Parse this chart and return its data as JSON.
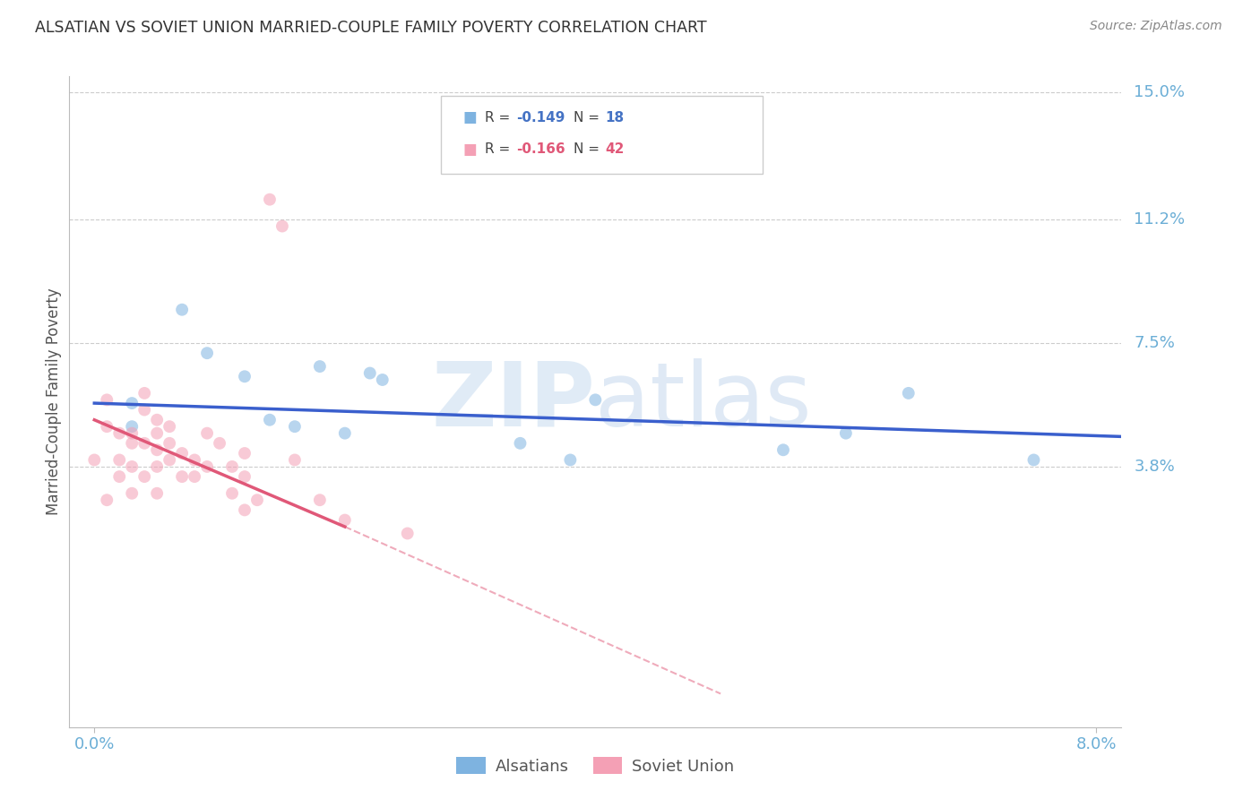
{
  "title": "ALSATIAN VS SOVIET UNION MARRIED-COUPLE FAMILY POVERTY CORRELATION CHART",
  "source": "Source: ZipAtlas.com",
  "ylabel": "Married-Couple Family Poverty",
  "xlim": [
    -0.002,
    0.082
  ],
  "ylim": [
    -0.04,
    0.155
  ],
  "ytick_vals": [
    0.038,
    0.075,
    0.112,
    0.15
  ],
  "ytick_labels": [
    "3.8%",
    "7.5%",
    "11.2%",
    "15.0%"
  ],
  "alsatian_color": "#7EB3E0",
  "soviet_color": "#F4A0B5",
  "trend_alsatian_color": "#3A5FCD",
  "trend_soviet_color": "#E05878",
  "watermark_zip": "ZIP",
  "watermark_atlas": "atlas",
  "alsatian_x": [
    0.003,
    0.003,
    0.007,
    0.009,
    0.012,
    0.014,
    0.016,
    0.018,
    0.02,
    0.022,
    0.023,
    0.034,
    0.038,
    0.04,
    0.055,
    0.06,
    0.065,
    0.075
  ],
  "alsatian_y": [
    0.057,
    0.05,
    0.085,
    0.072,
    0.065,
    0.052,
    0.05,
    0.068,
    0.048,
    0.066,
    0.064,
    0.045,
    0.04,
    0.058,
    0.043,
    0.048,
    0.06,
    0.04
  ],
  "soviet_x": [
    0.0,
    0.001,
    0.001,
    0.001,
    0.002,
    0.002,
    0.002,
    0.003,
    0.003,
    0.003,
    0.003,
    0.004,
    0.004,
    0.004,
    0.004,
    0.005,
    0.005,
    0.005,
    0.005,
    0.005,
    0.006,
    0.006,
    0.006,
    0.007,
    0.007,
    0.008,
    0.008,
    0.009,
    0.009,
    0.01,
    0.011,
    0.011,
    0.012,
    0.012,
    0.012,
    0.013,
    0.014,
    0.015,
    0.016,
    0.018,
    0.02,
    0.025
  ],
  "soviet_y": [
    0.04,
    0.05,
    0.058,
    0.028,
    0.048,
    0.04,
    0.035,
    0.048,
    0.038,
    0.045,
    0.03,
    0.055,
    0.06,
    0.045,
    0.035,
    0.052,
    0.048,
    0.043,
    0.038,
    0.03,
    0.05,
    0.045,
    0.04,
    0.042,
    0.035,
    0.04,
    0.035,
    0.048,
    0.038,
    0.045,
    0.038,
    0.03,
    0.042,
    0.035,
    0.025,
    0.028,
    0.118,
    0.11,
    0.04,
    0.028,
    0.022,
    0.018
  ],
  "background_color": "#FFFFFF",
  "grid_color": "#CCCCCC",
  "title_color": "#333333",
  "axis_label_color": "#555555",
  "tick_label_color": "#6BAED6",
  "marker_size": 100,
  "marker_alpha": 0.55,
  "legend_box_color": "#DDDDDD",
  "trend_blue_x0": 0.0,
  "trend_blue_x1": 0.082,
  "trend_blue_y0": 0.057,
  "trend_blue_y1": 0.047,
  "trend_pink_x0": 0.0,
  "trend_pink_x1": 0.02,
  "trend_pink_dashed_x1": 0.05,
  "trend_pink_y0": 0.052,
  "trend_pink_y1": 0.02,
  "trend_pink_dashed_y1": -0.03
}
